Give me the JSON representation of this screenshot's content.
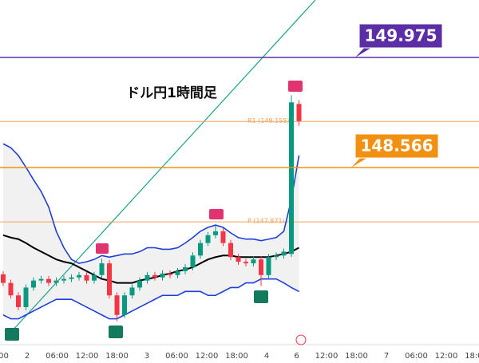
{
  "chart_data": {
    "type": "candlestick",
    "title": "ドル円1時間足",
    "ylim": [
      146.32,
      150.71
    ],
    "up_color": "#089981",
    "down_color": "#f23645",
    "open": [
      147.2,
      147.09,
      146.93,
      146.78,
      147.03,
      147.12,
      147.14,
      147.09,
      147.12,
      147.14,
      147.16,
      147.19,
      147.12,
      147.19,
      147.34,
      146.93,
      146.68,
      146.93,
      147.03,
      147.12,
      147.19,
      147.16,
      147.21,
      147.19,
      147.24,
      147.29,
      147.44,
      147.6,
      147.7,
      147.75,
      147.6,
      147.42,
      147.36,
      147.34,
      147.39,
      147.19,
      147.42,
      147.44,
      147.46,
      149.38
    ],
    "high": [
      147.24,
      147.13,
      146.97,
      147.07,
      147.16,
      147.18,
      147.18,
      147.16,
      147.18,
      147.2,
      147.23,
      147.23,
      147.23,
      147.4,
      147.38,
      146.97,
      146.97,
      147.07,
      147.16,
      147.23,
      147.23,
      147.25,
      147.25,
      147.28,
      147.33,
      147.48,
      147.64,
      147.74,
      147.82,
      147.79,
      147.64,
      147.46,
      147.4,
      147.43,
      147.43,
      147.46,
      147.48,
      147.53,
      149.49,
      149.43
    ],
    "low": [
      147.05,
      146.89,
      146.74,
      146.74,
      146.99,
      147.08,
      147.05,
      147.05,
      147.08,
      147.1,
      147.12,
      147.08,
      147.08,
      147.15,
      146.89,
      146.6,
      146.64,
      146.89,
      146.99,
      147.08,
      147.12,
      147.12,
      147.15,
      147.15,
      147.2,
      147.25,
      147.4,
      147.56,
      147.66,
      147.56,
      147.38,
      147.32,
      147.3,
      147.3,
      147.05,
      147.15,
      147.38,
      147.4,
      147.42,
      149.1
    ],
    "close": [
      147.09,
      146.93,
      146.78,
      147.03,
      147.12,
      147.14,
      147.09,
      147.12,
      147.14,
      147.16,
      147.19,
      147.12,
      147.19,
      147.34,
      146.93,
      146.68,
      146.93,
      147.03,
      147.12,
      147.19,
      147.16,
      147.21,
      147.19,
      147.24,
      147.29,
      147.44,
      147.6,
      147.7,
      147.75,
      147.6,
      147.42,
      147.36,
      147.34,
      147.39,
      147.19,
      147.42,
      147.44,
      147.49,
      149.4,
      149.16
    ],
    "series": [
      {
        "color": "#1e3fd8",
        "values": [
          148.87,
          148.82,
          148.72,
          148.57,
          148.41,
          148.26,
          148.06,
          147.75,
          147.54,
          147.39,
          147.34,
          147.36,
          147.39,
          147.44,
          147.42,
          147.44,
          147.46,
          147.46,
          147.49,
          147.54,
          147.54,
          147.52,
          147.52,
          147.54,
          147.6,
          147.67,
          147.75,
          147.8,
          147.83,
          147.8,
          147.73,
          147.67,
          147.65,
          147.65,
          147.63,
          147.65,
          147.67,
          147.75,
          148.16,
          148.72
        ]
      },
      {
        "color": "#000000",
        "values": [
          147.7,
          147.67,
          147.65,
          147.6,
          147.54,
          147.49,
          147.44,
          147.39,
          147.36,
          147.34,
          147.29,
          147.24,
          147.19,
          147.14,
          147.12,
          147.09,
          147.09,
          147.09,
          147.12,
          147.14,
          147.16,
          147.19,
          147.21,
          147.24,
          147.26,
          147.29,
          147.34,
          147.39,
          147.42,
          147.44,
          147.44,
          147.42,
          147.42,
          147.42,
          147.42,
          147.42,
          147.44,
          147.46,
          147.49,
          147.54
        ]
      },
      {
        "color": "#1e3fd8",
        "values": [
          146.68,
          146.63,
          146.63,
          146.68,
          146.73,
          146.78,
          146.83,
          146.88,
          146.88,
          146.88,
          146.83,
          146.78,
          146.73,
          146.68,
          146.63,
          146.63,
          146.68,
          146.73,
          146.78,
          146.83,
          146.88,
          146.93,
          146.93,
          146.93,
          146.98,
          146.98,
          146.98,
          146.93,
          146.93,
          146.98,
          147.03,
          147.03,
          147.09,
          147.09,
          147.14,
          147.14,
          147.14,
          147.09,
          147.03,
          146.98
        ]
      }
    ],
    "levels": [
      {
        "label": "R1 (149.155)",
        "value": 149.155,
        "color": "#f5a25a"
      },
      {
        "label": "P (147.871)",
        "value": 147.871,
        "color": "#f5a25a"
      }
    ],
    "price_tags": [
      {
        "value": 149.975,
        "color": "#5b2ea6"
      },
      {
        "value": 148.566,
        "color": "#f29111"
      }
    ],
    "time_labels": [
      "00",
      "2",
      "06:00",
      "12:00",
      "18:00",
      "3",
      "06:00",
      "12:00",
      "18:00",
      "4",
      "6",
      "12:00",
      "18:00",
      "7",
      "06:00",
      "12:00",
      "18:00"
    ]
  }
}
